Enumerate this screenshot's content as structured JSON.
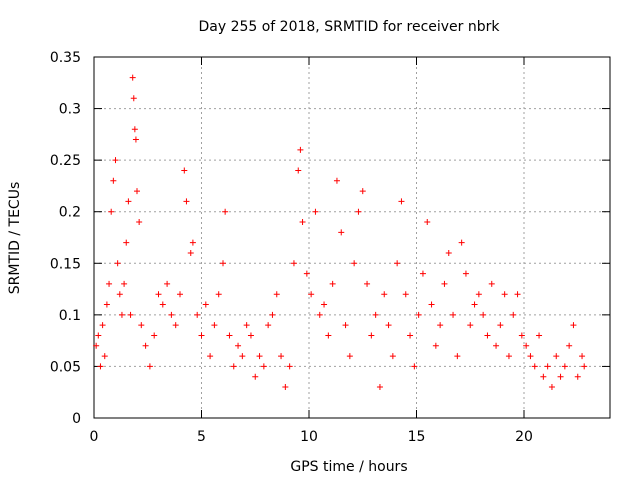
{
  "chart_data": {
    "type": "scatter",
    "title": "Day 255 of 2018, SRMTID for receiver nbrk",
    "xlabel": "GPS time / hours",
    "ylabel": "SRMTID / TECUs",
    "xlim": [
      0,
      24
    ],
    "ylim": [
      0,
      0.35
    ],
    "xticks": [
      0,
      5,
      10,
      15,
      20
    ],
    "xtick_labels": [
      "0",
      "5",
      "10",
      "15",
      "20"
    ],
    "yticks": [
      0,
      0.05,
      0.1,
      0.15,
      0.2,
      0.25,
      0.3,
      0.35
    ],
    "ytick_labels": [
      "0",
      "0.05",
      "0.1",
      "0.15",
      "0.2",
      "0.25",
      "0.3",
      "0.35"
    ],
    "grid": true,
    "marker": "+",
    "color": "#ff0000",
    "series": [
      {
        "name": "SRMTID",
        "points": [
          [
            0.1,
            0.07
          ],
          [
            0.2,
            0.08
          ],
          [
            0.3,
            0.05
          ],
          [
            0.4,
            0.09
          ],
          [
            0.5,
            0.06
          ],
          [
            0.6,
            0.11
          ],
          [
            0.7,
            0.13
          ],
          [
            0.8,
            0.2
          ],
          [
            0.9,
            0.23
          ],
          [
            1.0,
            0.25
          ],
          [
            1.1,
            0.15
          ],
          [
            1.2,
            0.12
          ],
          [
            1.3,
            0.1
          ],
          [
            1.4,
            0.13
          ],
          [
            1.5,
            0.17
          ],
          [
            1.6,
            0.21
          ],
          [
            1.7,
            0.1
          ],
          [
            1.8,
            0.33
          ],
          [
            1.85,
            0.31
          ],
          [
            1.9,
            0.28
          ],
          [
            1.95,
            0.27
          ],
          [
            2.0,
            0.22
          ],
          [
            2.1,
            0.19
          ],
          [
            2.2,
            0.09
          ],
          [
            2.4,
            0.07
          ],
          [
            2.6,
            0.05
          ],
          [
            2.8,
            0.08
          ],
          [
            3.0,
            0.12
          ],
          [
            3.2,
            0.11
          ],
          [
            3.4,
            0.13
          ],
          [
            3.6,
            0.1
          ],
          [
            3.8,
            0.09
          ],
          [
            4.0,
            0.12
          ],
          [
            4.2,
            0.24
          ],
          [
            4.3,
            0.21
          ],
          [
            4.5,
            0.16
          ],
          [
            4.6,
            0.17
          ],
          [
            4.8,
            0.1
          ],
          [
            5.0,
            0.08
          ],
          [
            5.2,
            0.11
          ],
          [
            5.4,
            0.06
          ],
          [
            5.6,
            0.09
          ],
          [
            5.8,
            0.12
          ],
          [
            6.0,
            0.15
          ],
          [
            6.1,
            0.2
          ],
          [
            6.3,
            0.08
          ],
          [
            6.5,
            0.05
          ],
          [
            6.7,
            0.07
          ],
          [
            6.9,
            0.06
          ],
          [
            7.1,
            0.09
          ],
          [
            7.3,
            0.08
          ],
          [
            7.5,
            0.04
          ],
          [
            7.7,
            0.06
          ],
          [
            7.9,
            0.05
          ],
          [
            8.1,
            0.09
          ],
          [
            8.3,
            0.1
          ],
          [
            8.5,
            0.12
          ],
          [
            8.7,
            0.06
          ],
          [
            8.9,
            0.03
          ],
          [
            9.1,
            0.05
          ],
          [
            9.3,
            0.15
          ],
          [
            9.5,
            0.24
          ],
          [
            9.6,
            0.26
          ],
          [
            9.7,
            0.19
          ],
          [
            9.9,
            0.14
          ],
          [
            10.1,
            0.12
          ],
          [
            10.3,
            0.2
          ],
          [
            10.5,
            0.1
          ],
          [
            10.7,
            0.11
          ],
          [
            10.9,
            0.08
          ],
          [
            11.1,
            0.13
          ],
          [
            11.3,
            0.23
          ],
          [
            11.5,
            0.18
          ],
          [
            11.7,
            0.09
          ],
          [
            11.9,
            0.06
          ],
          [
            12.1,
            0.15
          ],
          [
            12.3,
            0.2
          ],
          [
            12.5,
            0.22
          ],
          [
            12.7,
            0.13
          ],
          [
            12.9,
            0.08
          ],
          [
            13.1,
            0.1
          ],
          [
            13.3,
            0.03
          ],
          [
            13.5,
            0.12
          ],
          [
            13.7,
            0.09
          ],
          [
            13.9,
            0.06
          ],
          [
            14.1,
            0.15
          ],
          [
            14.3,
            0.21
          ],
          [
            14.5,
            0.12
          ],
          [
            14.7,
            0.08
          ],
          [
            14.9,
            0.05
          ],
          [
            15.1,
            0.1
          ],
          [
            15.3,
            0.14
          ],
          [
            15.5,
            0.19
          ],
          [
            15.7,
            0.11
          ],
          [
            15.9,
            0.07
          ],
          [
            16.1,
            0.09
          ],
          [
            16.3,
            0.13
          ],
          [
            16.5,
            0.16
          ],
          [
            16.7,
            0.1
          ],
          [
            16.9,
            0.06
          ],
          [
            17.1,
            0.17
          ],
          [
            17.3,
            0.14
          ],
          [
            17.5,
            0.09
          ],
          [
            17.7,
            0.11
          ],
          [
            17.9,
            0.12
          ],
          [
            18.1,
            0.1
          ],
          [
            18.3,
            0.08
          ],
          [
            18.5,
            0.13
          ],
          [
            18.7,
            0.07
          ],
          [
            18.9,
            0.09
          ],
          [
            19.1,
            0.12
          ],
          [
            19.3,
            0.06
          ],
          [
            19.5,
            0.1
          ],
          [
            19.7,
            0.12
          ],
          [
            19.9,
            0.08
          ],
          [
            20.1,
            0.07
          ],
          [
            20.3,
            0.06
          ],
          [
            20.5,
            0.05
          ],
          [
            20.7,
            0.08
          ],
          [
            20.9,
            0.04
          ],
          [
            21.1,
            0.05
          ],
          [
            21.3,
            0.03
          ],
          [
            21.5,
            0.06
          ],
          [
            21.7,
            0.04
          ],
          [
            21.9,
            0.05
          ],
          [
            22.1,
            0.07
          ],
          [
            22.3,
            0.09
          ],
          [
            22.5,
            0.04
          ],
          [
            22.7,
            0.06
          ],
          [
            22.8,
            0.05
          ]
        ]
      }
    ]
  }
}
